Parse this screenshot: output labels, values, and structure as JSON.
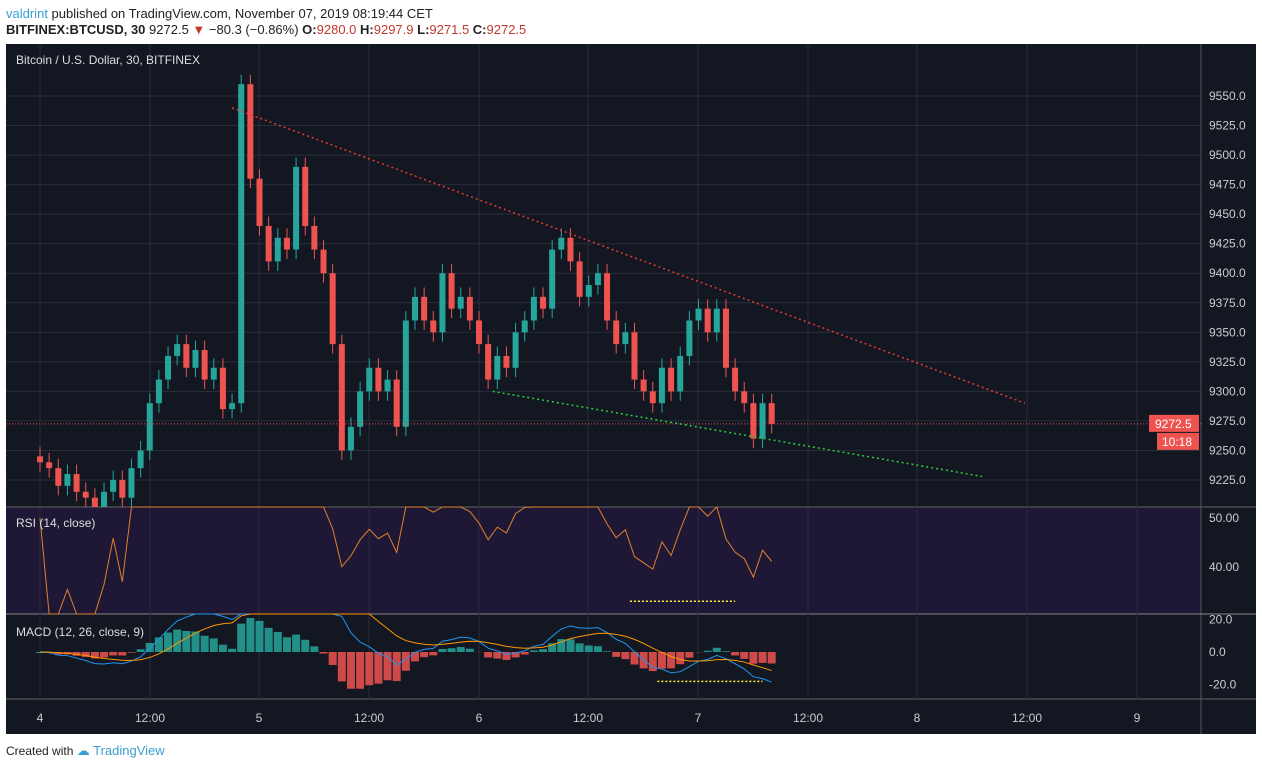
{
  "header": {
    "author": "valdrint",
    "published": "published on TradingView.com, November 07, 2019 08:19:44 CET",
    "symbol": "BITFINEX:BTCUSD, 30",
    "last": "9272.5",
    "arrow": "▼",
    "change": "−80.3 (−0.86%)",
    "o_label": "O:",
    "o": "9280.0",
    "h_label": "H:",
    "h": "9297.9",
    "l_label": "L:",
    "l": "9271.5",
    "c_label": "C:",
    "c": "9272.5"
  },
  "footer": {
    "created": "Created with",
    "brand": "TradingView"
  },
  "colors": {
    "bg": "#131722",
    "up": "#26a69a",
    "down": "#ef5350",
    "rsi_bg": "#1e1735",
    "rsi_line": "#e0812b",
    "macd_line": "#2196f3",
    "signal_line": "#ff9800",
    "trend_red": "#e53935",
    "trend_green": "#2ecc40",
    "dotted_yellow": "#ffeb3b"
  },
  "chart_data": {
    "type": "candlestick",
    "title": "Bitcoin / U.S. Dollar, 30, BITFINEX",
    "price_ticks": [
      9225,
      9250,
      9275,
      9300,
      9325,
      9350,
      9375,
      9400,
      9425,
      9450,
      9475,
      9500,
      9525,
      9550
    ],
    "price_range": [
      9203,
      9590
    ],
    "x_ticks": [
      "4",
      "12:00",
      "5",
      "12:00",
      "6",
      "12:00",
      "7",
      "12:00",
      "8",
      "12:00",
      "9"
    ],
    "closes_hourly_from_nov4": [
      9240,
      9235,
      9220,
      9230,
      9215,
      9210,
      9200,
      9215,
      9225,
      9210,
      9235,
      9250,
      9290,
      9310,
      9330,
      9340,
      9320,
      9335,
      9310,
      9320,
      9285,
      9290,
      9560,
      9480,
      9440,
      9410,
      9430,
      9420,
      9490,
      9440,
      9420,
      9400,
      9340,
      9250,
      9270,
      9300,
      9320,
      9300,
      9310,
      9270,
      9360,
      9380,
      9360,
      9350,
      9400,
      9370,
      9380,
      9360,
      9340,
      9310,
      9330,
      9320,
      9350,
      9360,
      9380,
      9370,
      9420,
      9430,
      9410,
      9380,
      9390,
      9400,
      9360,
      9340,
      9350,
      9310,
      9300,
      9290,
      9320,
      9300,
      9330,
      9360,
      9370,
      9350,
      9370,
      9320,
      9300,
      9290,
      9260,
      9290,
      9272.5
    ],
    "last_price_label": "9272.5",
    "countdown": "10:18",
    "trendlines": [
      {
        "color": "red",
        "from": [
          "Nov 4 21:00",
          9540
        ],
        "to": [
          "Nov 8 20:00",
          9290
        ]
      },
      {
        "color": "green",
        "from": [
          "Nov 6 02:00",
          9300
        ],
        "to": [
          "Nov 8 17:00",
          9228
        ]
      }
    ],
    "rsi": {
      "title": "RSI (14, close)",
      "ticks": [
        "50.00",
        "40.00"
      ],
      "range": [
        28,
        52
      ],
      "support_line": {
        "value": 33,
        "from": "Nov 6 16:00",
        "to": "Nov 7 15:00"
      }
    },
    "macd": {
      "title": "MACD (12, 26, close, 9)",
      "ticks": [
        "20.0",
        "0.0",
        "-20.0"
      ],
      "range": [
        -30,
        22
      ],
      "support_line": {
        "value": -18,
        "from": "Nov 6 17:00",
        "to": "Nov 7 16:00"
      }
    }
  }
}
